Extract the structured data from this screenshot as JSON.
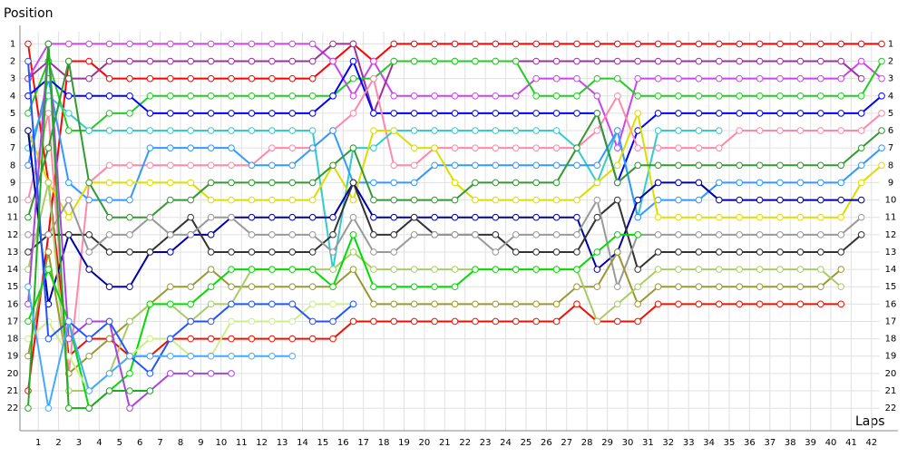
{
  "chart_data": {
    "type": "line",
    "y_label": "Position",
    "x_label": "Laps",
    "x": [
      0,
      1,
      2,
      3,
      4,
      5,
      6,
      7,
      8,
      9,
      10,
      11,
      12,
      13,
      14,
      15,
      16,
      17,
      18,
      19,
      20,
      21,
      22,
      23,
      24,
      25,
      26,
      27,
      28,
      29,
      30,
      31,
      32,
      33,
      34,
      35,
      36,
      37,
      38,
      39,
      40,
      41,
      42
    ],
    "xlim": [
      -0.4,
      42.8
    ],
    "xticks": [
      {
        "value": 0.5,
        "label": "1"
      },
      {
        "value": 1.5,
        "label": "2"
      },
      {
        "value": 2.5,
        "label": "3"
      },
      {
        "value": 3.5,
        "label": "4"
      },
      {
        "value": 4.5,
        "label": "5"
      },
      {
        "value": 5.5,
        "label": "6"
      },
      {
        "value": 6.5,
        "label": "7"
      },
      {
        "value": 7.5,
        "label": "8"
      },
      {
        "value": 8.5,
        "label": "9"
      },
      {
        "value": 9.5,
        "label": "10"
      },
      {
        "value": 10.5,
        "label": "11"
      },
      {
        "value": 11.5,
        "label": "12"
      },
      {
        "value": 12.5,
        "label": "13"
      },
      {
        "value": 13.5,
        "label": "14"
      },
      {
        "value": 14.5,
        "label": "15"
      },
      {
        "value": 15.5,
        "label": "16"
      },
      {
        "value": 16.5,
        "label": "17"
      },
      {
        "value": 17.5,
        "label": "18"
      },
      {
        "value": 18.5,
        "label": "19"
      },
      {
        "value": 19.5,
        "label": "20"
      },
      {
        "value": 20.5,
        "label": "21"
      },
      {
        "value": 21.5,
        "label": "22"
      },
      {
        "value": 22.5,
        "label": "23"
      },
      {
        "value": 23.5,
        "label": "24"
      },
      {
        "value": 24.5,
        "label": "25"
      },
      {
        "value": 25.5,
        "label": "26"
      },
      {
        "value": 26.5,
        "label": "27"
      },
      {
        "value": 27.5,
        "label": "28"
      },
      {
        "value": 28.5,
        "label": "29"
      },
      {
        "value": 29.5,
        "label": "30"
      },
      {
        "value": 30.5,
        "label": "31"
      },
      {
        "value": 31.5,
        "label": "32"
      },
      {
        "value": 32.5,
        "label": "33"
      },
      {
        "value": 33.5,
        "label": "34"
      },
      {
        "value": 34.5,
        "label": "35"
      },
      {
        "value": 35.5,
        "label": "36"
      },
      {
        "value": 36.5,
        "label": "37"
      },
      {
        "value": 37.5,
        "label": "38"
      },
      {
        "value": 38.5,
        "label": "39"
      },
      {
        "value": 39.5,
        "label": "40"
      },
      {
        "value": 40.5,
        "label": "41"
      },
      {
        "value": 41.5,
        "label": "42"
      }
    ],
    "ylim": [
      23.3,
      0.3
    ],
    "yticks": [
      1,
      2,
      3,
      4,
      5,
      6,
      7,
      8,
      9,
      10,
      11,
      12,
      13,
      14,
      15,
      16,
      17,
      18,
      19,
      20,
      21,
      22
    ],
    "grid": true,
    "series": [
      {
        "color": "#ff0000",
        "values": [
          21,
          12,
          2,
          2,
          3,
          3,
          3,
          3,
          3,
          3,
          3,
          3,
          3,
          3,
          3,
          2,
          1,
          2,
          1,
          1,
          1,
          1,
          1,
          1,
          1,
          1,
          1,
          1,
          1,
          1,
          1,
          1,
          1,
          1,
          1,
          1,
          1,
          1,
          1,
          1,
          1,
          1,
          1
        ]
      },
      {
        "color": "#ee1100",
        "values": [
          1,
          9,
          19,
          18,
          18,
          19,
          19,
          18,
          18,
          18,
          18,
          18,
          18,
          18,
          18,
          18,
          17,
          17,
          17,
          17,
          17,
          17,
          17,
          17,
          17,
          17,
          17,
          16,
          17,
          17,
          17,
          16,
          16,
          16,
          16,
          16,
          16,
          16,
          16,
          16,
          16,
          null,
          null
        ]
      },
      {
        "color": "#cc44ee",
        "values": [
          3,
          1,
          1,
          1,
          1,
          1,
          1,
          1,
          1,
          1,
          1,
          1,
          1,
          1,
          1,
          2,
          4,
          2,
          4,
          4,
          4,
          4,
          4,
          4,
          4,
          3,
          3,
          3,
          4,
          7,
          3,
          3,
          3,
          3,
          3,
          3,
          3,
          3,
          3,
          3,
          3,
          2,
          3
        ]
      },
      {
        "color": "#993399",
        "values": [
          3,
          2,
          3,
          3,
          2,
          2,
          2,
          2,
          2,
          2,
          2,
          2,
          2,
          2,
          2,
          1,
          1,
          5,
          2,
          2,
          2,
          2,
          2,
          2,
          2,
          2,
          2,
          2,
          2,
          2,
          2,
          2,
          2,
          2,
          2,
          2,
          2,
          2,
          2,
          2,
          2,
          3,
          null
        ]
      },
      {
        "color": "#22cc22",
        "values": [
          5,
          2,
          6,
          6,
          5,
          5,
          4,
          4,
          4,
          4,
          4,
          4,
          4,
          4,
          4,
          4,
          3,
          3,
          2,
          2,
          2,
          2,
          2,
          2,
          2,
          4,
          4,
          4,
          3,
          3,
          4,
          4,
          4,
          4,
          4,
          4,
          4,
          4,
          4,
          4,
          4,
          4,
          2
        ]
      },
      {
        "color": "#0000ff",
        "values": [
          4,
          3,
          4,
          4,
          4,
          4,
          5,
          5,
          5,
          5,
          5,
          5,
          5,
          5,
          5,
          4,
          2,
          5,
          5,
          5,
          5,
          5,
          5,
          5,
          5,
          5,
          5,
          5,
          5,
          9,
          6,
          5,
          5,
          5,
          5,
          5,
          5,
          5,
          5,
          5,
          5,
          5,
          4
        ]
      },
      {
        "color": "#ff88aa",
        "values": [
          10,
          5,
          20,
          9,
          8,
          8,
          8,
          8,
          8,
          8,
          8,
          8,
          7,
          7,
          7,
          6,
          5,
          3,
          8,
          8,
          7,
          7,
          7,
          7,
          7,
          7,
          7,
          7,
          6,
          4,
          7,
          7,
          7,
          7,
          7,
          6,
          6,
          6,
          6,
          6,
          6,
          6,
          5
        ]
      },
      {
        "color": "#33cccc",
        "values": [
          7,
          4,
          5,
          6,
          6,
          6,
          6,
          6,
          6,
          6,
          6,
          6,
          6,
          6,
          6,
          14,
          7,
          7,
          6,
          6,
          6,
          6,
          6,
          6,
          6,
          6,
          6,
          7,
          9,
          6,
          11,
          6,
          6,
          6,
          6,
          null,
          null,
          null,
          null,
          null,
          null,
          null,
          null
        ]
      },
      {
        "color": "#3399ff",
        "values": [
          8,
          3,
          9,
          10,
          10,
          10,
          7,
          7,
          7,
          7,
          7,
          8,
          8,
          8,
          7,
          6,
          9,
          9,
          9,
          9,
          8,
          8,
          8,
          8,
          8,
          8,
          8,
          8,
          8,
          6,
          11,
          10,
          10,
          10,
          9,
          9,
          9,
          9,
          9,
          9,
          9,
          8,
          7
        ]
      },
      {
        "color": "#dddd00",
        "values": [
          6,
          9,
          11,
          9,
          9,
          9,
          9,
          9,
          9,
          10,
          10,
          10,
          10,
          10,
          10,
          8,
          10,
          6,
          6,
          7,
          7,
          9,
          10,
          10,
          10,
          10,
          10,
          10,
          9,
          8,
          5,
          11,
          11,
          11,
          11,
          11,
          11,
          11,
          11,
          11,
          11,
          9,
          8
        ]
      },
      {
        "color": "#339933",
        "values": [
          11,
          7,
          2,
          9,
          11,
          11,
          11,
          10,
          10,
          9,
          9,
          9,
          9,
          9,
          9,
          8,
          7,
          10,
          10,
          10,
          10,
          10,
          9,
          9,
          9,
          9,
          9,
          7,
          5,
          9,
          8,
          8,
          8,
          8,
          8,
          8,
          8,
          8,
          8,
          8,
          8,
          7,
          6
        ]
      },
      {
        "color": "#0000aa",
        "values": [
          6,
          16,
          12,
          14,
          15,
          15,
          13,
          13,
          12,
          12,
          11,
          11,
          11,
          11,
          11,
          11,
          9,
          11,
          11,
          11,
          11,
          11,
          11,
          11,
          11,
          11,
          11,
          11,
          14,
          13,
          10,
          9,
          9,
          9,
          10,
          10,
          10,
          10,
          10,
          10,
          10,
          10,
          null
        ]
      },
      {
        "color": "#333333",
        "values": [
          13,
          12,
          12,
          12,
          13,
          13,
          13,
          12,
          11,
          13,
          13,
          13,
          13,
          13,
          13,
          12,
          9,
          12,
          12,
          11,
          12,
          12,
          12,
          12,
          13,
          13,
          13,
          13,
          11,
          10,
          14,
          13,
          13,
          13,
          13,
          13,
          13,
          13,
          13,
          13,
          13,
          12,
          null
        ]
      },
      {
        "color": "#999999",
        "values": [
          12,
          12,
          10,
          13,
          12,
          12,
          11,
          12,
          12,
          11,
          11,
          12,
          12,
          12,
          12,
          13,
          11,
          13,
          13,
          12,
          12,
          12,
          12,
          13,
          12,
          12,
          12,
          12,
          10,
          15,
          12,
          12,
          12,
          12,
          12,
          12,
          12,
          12,
          12,
          12,
          12,
          11,
          null
        ]
      },
      {
        "color": "#999933",
        "values": [
          19,
          13,
          20,
          19,
          18,
          17,
          16,
          15,
          15,
          14,
          15,
          15,
          15,
          15,
          15,
          15,
          14,
          16,
          16,
          16,
          16,
          16,
          16,
          16,
          16,
          16,
          16,
          15,
          15,
          13,
          16,
          15,
          15,
          15,
          15,
          15,
          15,
          15,
          15,
          15,
          14,
          null,
          null
        ]
      },
      {
        "color": "#aacc66",
        "values": [
          14,
          9,
          21,
          21,
          20,
          17,
          16,
          16,
          17,
          16,
          16,
          14,
          14,
          14,
          14,
          14,
          13,
          14,
          14,
          14,
          14,
          14,
          14,
          14,
          14,
          14,
          14,
          14,
          17,
          16,
          15,
          14,
          14,
          14,
          14,
          14,
          14,
          14,
          14,
          14,
          15,
          null,
          null
        ]
      },
      {
        "color": "#00dd00",
        "values": [
          17,
          14,
          17,
          22,
          21,
          20,
          16,
          16,
          16,
          15,
          14,
          14,
          14,
          14,
          14,
          15,
          12,
          15,
          15,
          15,
          15,
          15,
          14,
          14,
          14,
          14,
          14,
          14,
          13,
          12,
          12,
          null,
          null,
          null,
          null,
          null,
          null,
          null,
          null,
          null,
          null,
          null,
          null
        ]
      },
      {
        "color": "#ccee88",
        "values": [
          18,
          17,
          19,
          21,
          20,
          19,
          18,
          18,
          19,
          19,
          17,
          17,
          17,
          17,
          16,
          16,
          16,
          null,
          null,
          null,
          null,
          null,
          null,
          null,
          null,
          null,
          null,
          null,
          null,
          null,
          null,
          null,
          null,
          null,
          null,
          null,
          null,
          null,
          null,
          null,
          null,
          null,
          null
        ]
      },
      {
        "color": "#aa44dd",
        "values": [
          16,
          1,
          18,
          17,
          17,
          22,
          21,
          20,
          20,
          20,
          20,
          null,
          null,
          null,
          null,
          null,
          null,
          null,
          null,
          null,
          null,
          null,
          null,
          null,
          null,
          null,
          null,
          null,
          null,
          null,
          null,
          null,
          null,
          null,
          null,
          null,
          null,
          null,
          null,
          null,
          null,
          null,
          null
        ]
      },
      {
        "color": "#2255ff",
        "values": [
          2,
          18,
          17,
          18,
          17,
          19,
          20,
          18,
          17,
          17,
          16,
          16,
          16,
          16,
          17,
          17,
          16,
          null,
          null,
          null,
          null,
          null,
          null,
          null,
          null,
          null,
          null,
          null,
          null,
          null,
          null,
          null,
          null,
          null,
          null,
          null,
          null,
          null,
          null,
          null,
          null,
          null,
          null
        ]
      },
      {
        "color": "#22aa22",
        "values": [
          22,
          1,
          22,
          22,
          21,
          21,
          21,
          null,
          null,
          null,
          null,
          null,
          null,
          null,
          null,
          null,
          null,
          null,
          null,
          null,
          null,
          null,
          null,
          null,
          null,
          null,
          null,
          null,
          null,
          null,
          null,
          null,
          null,
          null,
          null,
          null,
          null,
          null,
          null,
          null,
          null,
          null,
          null
        ]
      },
      {
        "color": "#44aaff",
        "values": [
          15,
          22,
          17,
          21,
          20,
          19,
          19,
          19,
          19,
          19,
          19,
          19,
          19,
          19,
          null,
          null,
          null,
          null,
          null,
          null,
          null,
          null,
          null,
          null,
          null,
          null,
          null,
          null,
          null,
          null,
          null,
          null,
          null,
          null,
          null,
          null,
          null,
          null,
          null,
          null,
          null,
          null,
          null
        ]
      }
    ]
  }
}
